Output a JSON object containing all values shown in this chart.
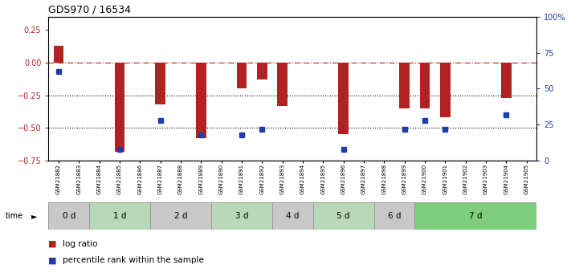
{
  "title": "GDS970 / 16534",
  "samples": [
    "GSM21882",
    "GSM21883",
    "GSM21884",
    "GSM21885",
    "GSM21886",
    "GSM21887",
    "GSM21888",
    "GSM21889",
    "GSM21890",
    "GSM21891",
    "GSM21892",
    "GSM21893",
    "GSM21894",
    "GSM21895",
    "GSM21896",
    "GSM21897",
    "GSM21898",
    "GSM21899",
    "GSM21900",
    "GSM21901",
    "GSM21902",
    "GSM21903",
    "GSM21904",
    "GSM21905"
  ],
  "log_ratio": [
    0.13,
    0.0,
    0.0,
    -0.68,
    0.0,
    -0.32,
    0.0,
    -0.58,
    0.0,
    -0.2,
    -0.13,
    -0.33,
    0.0,
    0.0,
    -0.55,
    0.0,
    0.0,
    -0.35,
    -0.35,
    -0.42,
    0.0,
    0.0,
    -0.27,
    0.0
  ],
  "percentile_rank": [
    62,
    null,
    null,
    8,
    null,
    28,
    null,
    18,
    null,
    18,
    22,
    null,
    null,
    null,
    8,
    null,
    null,
    22,
    28,
    22,
    null,
    null,
    32,
    null
  ],
  "time_groups": [
    {
      "label": "0 d",
      "start": 0,
      "end": 2,
      "color": "#c8c8c8"
    },
    {
      "label": "1 d",
      "start": 2,
      "end": 5,
      "color": "#b8d8b8"
    },
    {
      "label": "2 d",
      "start": 5,
      "end": 8,
      "color": "#c8c8c8"
    },
    {
      "label": "3 d",
      "start": 8,
      "end": 11,
      "color": "#b8d8b8"
    },
    {
      "label": "4 d",
      "start": 11,
      "end": 13,
      "color": "#c8c8c8"
    },
    {
      "label": "5 d",
      "start": 13,
      "end": 16,
      "color": "#b8d8b8"
    },
    {
      "label": "6 d",
      "start": 16,
      "end": 18,
      "color": "#c8c8c8"
    },
    {
      "label": "7 d",
      "start": 18,
      "end": 24,
      "color": "#7dce7d"
    }
  ],
  "ylim_left": [
    -0.75,
    0.35
  ],
  "ylim_right": [
    0,
    100
  ],
  "dotted_lines": [
    -0.25,
    -0.5
  ],
  "bar_color": "#b22222",
  "square_color": "#1e3caa",
  "background_color": "#ffffff",
  "right_ytick_labels": [
    "0",
    "25",
    "50",
    "75",
    "100%"
  ],
  "right_ytick_values": [
    0,
    25,
    50,
    75,
    100
  ]
}
